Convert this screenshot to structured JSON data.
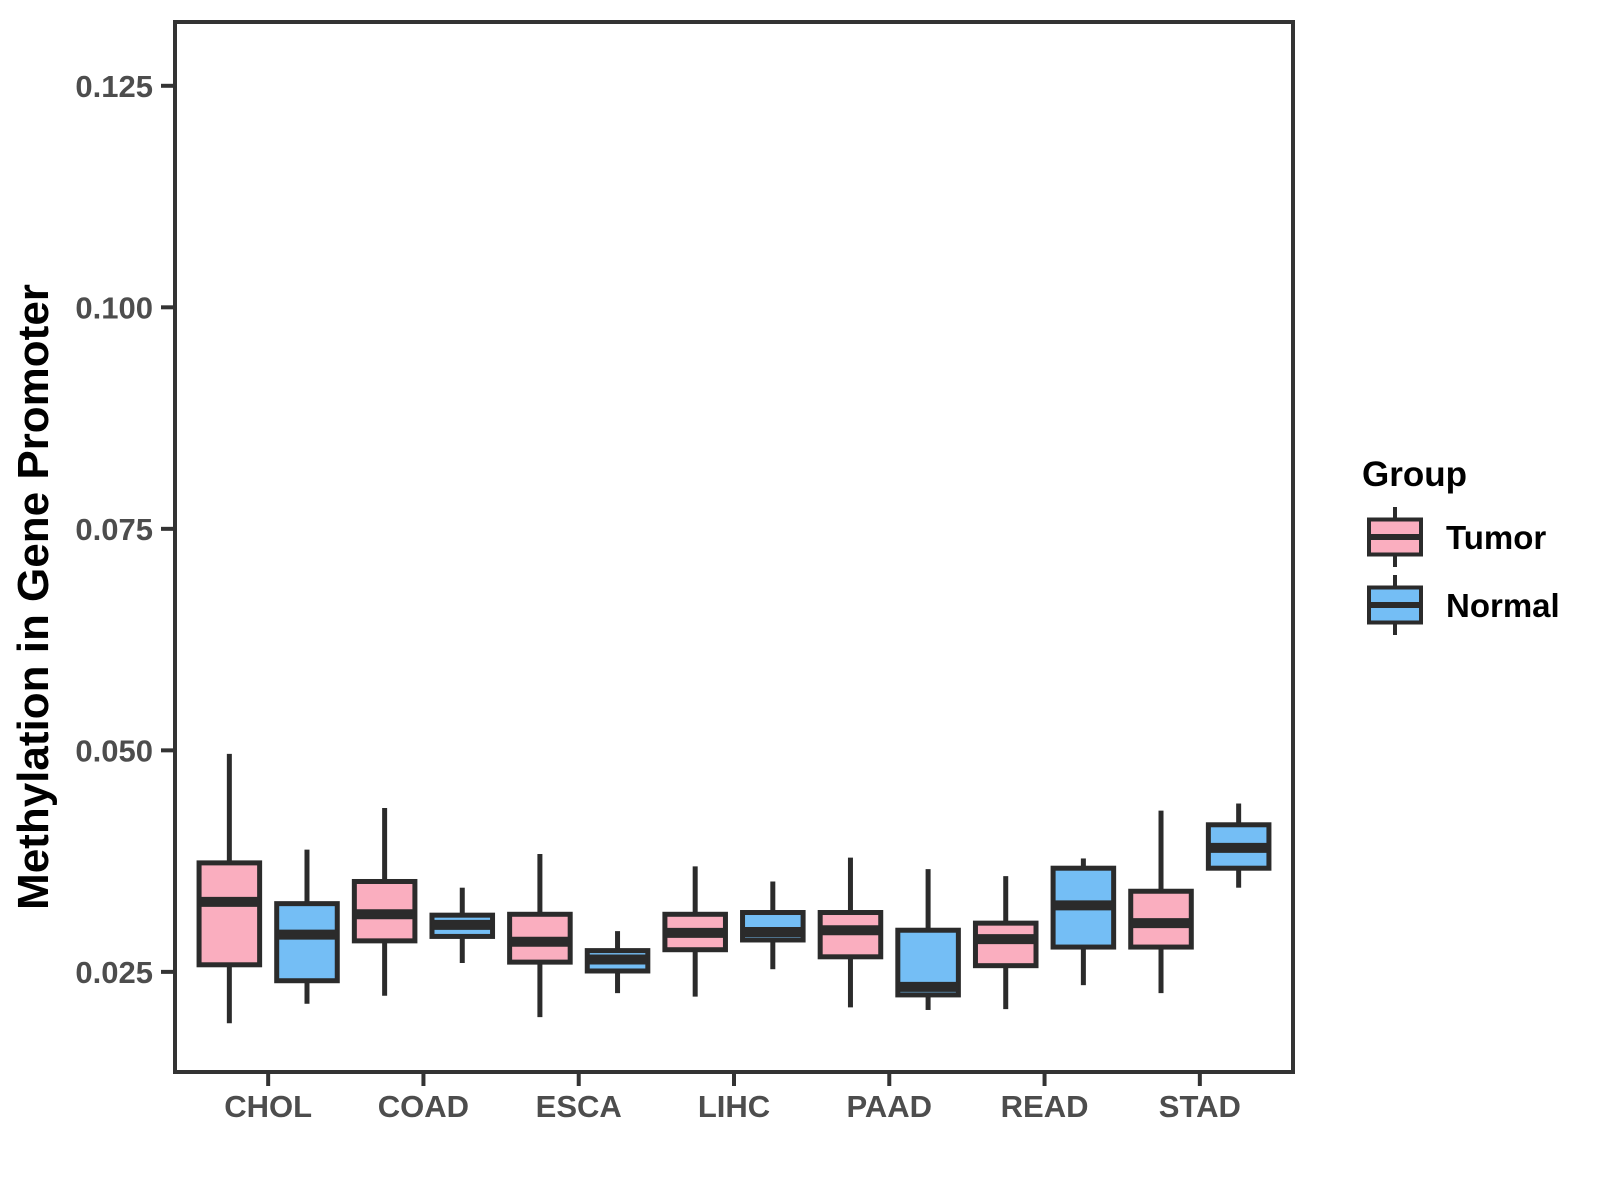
{
  "chart_data": {
    "type": "boxplot",
    "title": "",
    "xlabel": "",
    "ylabel": "Methylation in Gene Promoter",
    "legend_title": "Group",
    "legend_position": "right",
    "grid": false,
    "categories": [
      "CHOL",
      "COAD",
      "ESCA",
      "LIHC",
      "PAAD",
      "READ",
      "STAD"
    ],
    "y_ticks": [
      0.025,
      0.05,
      0.075,
      0.1,
      0.125
    ],
    "y_tick_labels": [
      "0.025",
      "0.050",
      "0.075",
      "0.100",
      "0.125"
    ],
    "ylim": [
      0.0137,
      0.1322
    ],
    "colors": {
      "tumor_fill": "#FAAEBF",
      "normal_fill": "#74BEF5",
      "box_stroke": "#2B2B2B",
      "axis": "#333333",
      "tick_label": "#4D4D4D"
    },
    "series": [
      {
        "name": "Tumor",
        "fill": "#FAAEBF",
        "boxes": [
          {
            "category": "CHOL",
            "low": 0.0192,
            "q1": 0.0258,
            "median": 0.0329,
            "q3": 0.0373,
            "high": 0.0496
          },
          {
            "category": "COAD",
            "low": 0.0223,
            "q1": 0.0285,
            "median": 0.0315,
            "q3": 0.0352,
            "high": 0.0435
          },
          {
            "category": "ESCA",
            "low": 0.0199,
            "q1": 0.0261,
            "median": 0.0284,
            "q3": 0.0315,
            "high": 0.0383
          },
          {
            "category": "LIHC",
            "low": 0.0222,
            "q1": 0.0275,
            "median": 0.0294,
            "q3": 0.0315,
            "high": 0.0369
          },
          {
            "category": "PAAD",
            "low": 0.021,
            "q1": 0.0267,
            "median": 0.0297,
            "q3": 0.0317,
            "high": 0.0379
          },
          {
            "category": "READ",
            "low": 0.0208,
            "q1": 0.0257,
            "median": 0.0287,
            "q3": 0.0305,
            "high": 0.0358
          },
          {
            "category": "STAD",
            "low": 0.0226,
            "q1": 0.0278,
            "median": 0.0305,
            "q3": 0.0341,
            "high": 0.0432
          }
        ]
      },
      {
        "name": "Normal",
        "fill": "#74BEF5",
        "boxes": [
          {
            "category": "CHOL",
            "low": 0.0214,
            "q1": 0.024,
            "median": 0.0292,
            "q3": 0.0327,
            "high": 0.0388
          },
          {
            "category": "COAD",
            "low": 0.026,
            "q1": 0.029,
            "median": 0.0303,
            "q3": 0.0314,
            "high": 0.0345
          },
          {
            "category": "ESCA",
            "low": 0.0226,
            "q1": 0.0251,
            "median": 0.0264,
            "q3": 0.0274,
            "high": 0.0296
          },
          {
            "category": "LIHC",
            "low": 0.0253,
            "q1": 0.0286,
            "median": 0.0295,
            "q3": 0.0317,
            "high": 0.0352
          },
          {
            "category": "PAAD",
            "low": 0.0207,
            "q1": 0.0224,
            "median": 0.0233,
            "q3": 0.0297,
            "high": 0.0366
          },
          {
            "category": "READ",
            "low": 0.0235,
            "q1": 0.0278,
            "median": 0.0325,
            "q3": 0.0367,
            "high": 0.0378
          },
          {
            "category": "STAD",
            "low": 0.0345,
            "q1": 0.0367,
            "median": 0.039,
            "q3": 0.0416,
            "high": 0.044
          }
        ]
      }
    ]
  }
}
